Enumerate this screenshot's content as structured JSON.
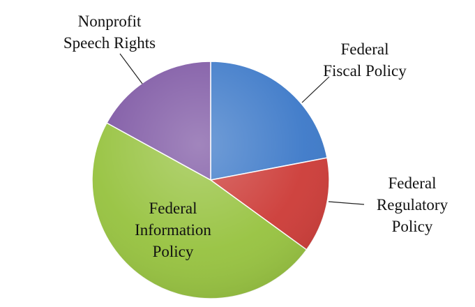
{
  "chart_data": {
    "type": "pie",
    "title": "",
    "slices": [
      {
        "label": [
          "Federal",
          "Fiscal Policy"
        ],
        "value": 22,
        "color": "#3b78c8"
      },
      {
        "label": [
          "Federal",
          "Regulatory",
          "Policy"
        ],
        "value": 13,
        "color": "#cc3a36"
      },
      {
        "label": [
          "Federal",
          "Information",
          "Policy"
        ],
        "value": 48,
        "color": "#96c23e"
      },
      {
        "label": [
          "Nonprofit",
          "Speech Rights"
        ],
        "value": 17,
        "color": "#7d56a3"
      }
    ]
  }
}
